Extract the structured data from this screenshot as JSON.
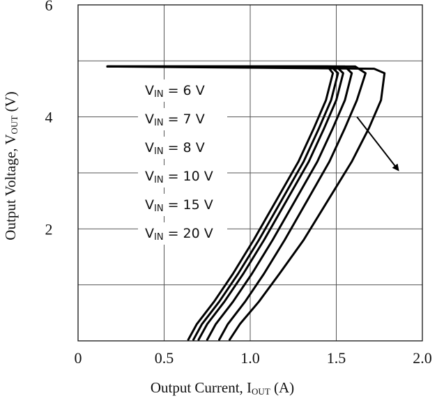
{
  "chart_data": {
    "type": "line",
    "xlabel": {
      "main": "Output Current, I",
      "sub": "OUT",
      "unit": " (A)"
    },
    "ylabel": {
      "main": "Output Voltage, V",
      "sub": "OUT",
      "unit": " (V)"
    },
    "xlim": [
      0,
      2.0
    ],
    "ylim": [
      0,
      6
    ],
    "x_ticks": [
      {
        "value": 0,
        "label": "0"
      },
      {
        "value": 0.5,
        "label": "0.5"
      },
      {
        "value": 1.0,
        "label": "1.0"
      },
      {
        "value": 1.5,
        "label": "1.5"
      },
      {
        "value": 2.0,
        "label": "2.0"
      }
    ],
    "y_ticks": [
      {
        "value": 2,
        "label": "2"
      },
      {
        "value": 4,
        "label": "4"
      },
      {
        "value": 6,
        "label": "6"
      }
    ],
    "grid_x": [
      0.5,
      1.0,
      1.5
    ],
    "grid_y": [
      1,
      2,
      3,
      4,
      5
    ],
    "grid": true,
    "series": [
      {
        "name": "V_IN = 6 V",
        "legend": {
          "main": "V",
          "sub": "IN",
          "rest": " = 6 V"
        },
        "x": [
          0.17,
          1.45,
          1.48,
          1.44,
          1.37,
          1.28,
          1.15,
          1.02,
          0.9,
          0.79,
          0.69,
          0.64
        ],
        "y": [
          4.9,
          4.9,
          4.78,
          4.3,
          3.8,
          3.2,
          2.5,
          1.8,
          1.2,
          0.7,
          0.3,
          0.02
        ]
      },
      {
        "name": "V_IN = 7 V",
        "legend": {
          "main": "V",
          "sub": "IN",
          "rest": " = 7 V"
        },
        "x": [
          0.17,
          1.47,
          1.51,
          1.47,
          1.4,
          1.31,
          1.18,
          1.05,
          0.93,
          0.82,
          0.72,
          0.67
        ],
        "y": [
          4.9,
          4.9,
          4.78,
          4.3,
          3.8,
          3.2,
          2.5,
          1.8,
          1.2,
          0.7,
          0.3,
          0.02
        ]
      },
      {
        "name": "V_IN = 8 V",
        "legend": {
          "main": "V",
          "sub": "IN",
          "rest": " = 8 V"
        },
        "x": [
          0.17,
          1.5,
          1.54,
          1.5,
          1.43,
          1.34,
          1.21,
          1.08,
          0.96,
          0.85,
          0.75,
          0.7
        ],
        "y": [
          4.9,
          4.9,
          4.78,
          4.3,
          3.8,
          3.2,
          2.5,
          1.8,
          1.2,
          0.7,
          0.3,
          0.02
        ]
      },
      {
        "name": "V_IN = 10 V",
        "legend": {
          "main": "V",
          "sub": "IN",
          "rest": " = 10 V"
        },
        "x": [
          0.17,
          1.55,
          1.59,
          1.55,
          1.48,
          1.39,
          1.26,
          1.13,
          1.01,
          0.9,
          0.8,
          0.75
        ],
        "y": [
          4.9,
          4.9,
          4.78,
          4.3,
          3.8,
          3.2,
          2.5,
          1.8,
          1.2,
          0.7,
          0.3,
          0.02
        ]
      },
      {
        "name": "V_IN = 15 V",
        "legend": {
          "main": "V",
          "sub": "IN",
          "rest": " = 15 V"
        },
        "x": [
          0.17,
          1.61,
          1.67,
          1.62,
          1.55,
          1.46,
          1.33,
          1.2,
          1.08,
          0.97,
          0.87,
          0.82
        ],
        "y": [
          4.9,
          4.9,
          4.78,
          4.3,
          3.8,
          3.2,
          2.5,
          1.8,
          1.2,
          0.7,
          0.3,
          0.02
        ]
      },
      {
        "name": "V_IN = 20 V",
        "legend": {
          "main": "V",
          "sub": "IN",
          "rest": " = 20 V"
        },
        "x": [
          0.17,
          1.72,
          1.78,
          1.76,
          1.69,
          1.59,
          1.45,
          1.31,
          1.17,
          1.05,
          0.94,
          0.88
        ],
        "y": [
          4.9,
          4.86,
          4.78,
          4.3,
          3.8,
          3.2,
          2.5,
          1.8,
          1.2,
          0.7,
          0.3,
          0.02
        ]
      }
    ],
    "annotations": [
      {
        "type": "arrow",
        "from": [
          1.62,
          4.0
        ],
        "to": [
          1.86,
          3.05
        ]
      }
    ]
  }
}
